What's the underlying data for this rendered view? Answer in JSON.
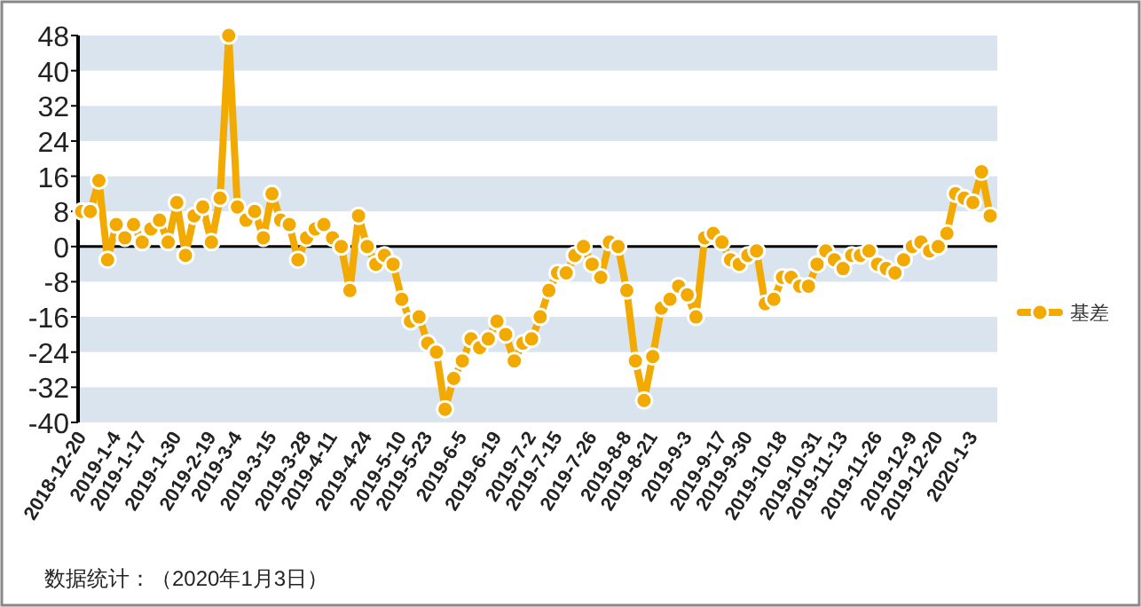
{
  "chart_data": {
    "type": "line",
    "categories": [
      "2018-12-20",
      null,
      null,
      null,
      "2019-1-4",
      null,
      null,
      "2019-1-17",
      null,
      null,
      null,
      "2019-1-30",
      null,
      null,
      null,
      "2019-2-19",
      null,
      null,
      "2019-3-4",
      null,
      null,
      null,
      "2019-3-15",
      null,
      null,
      null,
      "2019-3-28",
      null,
      null,
      "2019-4-11",
      null,
      null,
      null,
      "2019-4-24",
      null,
      null,
      null,
      "2019-5-10",
      null,
      null,
      "2019-5-23",
      null,
      null,
      null,
      "2019-6-5",
      null,
      null,
      null,
      "2019-6-19",
      null,
      null,
      null,
      "2019-7-2",
      null,
      null,
      "2019-7-15",
      null,
      null,
      null,
      "2019-7-26",
      null,
      null,
      null,
      "2019-8-8",
      null,
      null,
      "2019-8-21",
      null,
      null,
      null,
      "2019-9-3",
      null,
      null,
      null,
      "2019-9-17",
      null,
      null,
      "2019-9-30",
      null,
      null,
      null,
      "2019-10-18",
      null,
      null,
      null,
      "2019-10-31",
      null,
      null,
      "2019-11-13",
      null,
      null,
      null,
      "2019-11-26",
      null,
      null,
      null,
      "2019-12-9",
      null,
      null,
      "2019-12-20",
      null,
      null,
      null,
      "2020-1-3",
      null,
      null
    ],
    "series": [
      {
        "name": "基差",
        "color": "#f2a900",
        "values": [
          8,
          8,
          15,
          -3,
          5,
          2,
          5,
          1,
          4,
          6,
          1,
          10,
          -2,
          7,
          9,
          1,
          11,
          48,
          9,
          6,
          8,
          2,
          12,
          6,
          5,
          -3,
          2,
          4,
          5,
          2,
          0,
          -10,
          7,
          0,
          -4,
          -2,
          -4,
          -12,
          -17,
          -16,
          -22,
          -24,
          -37,
          -30,
          -26,
          -21,
          -23,
          -21,
          -17,
          -20,
          -26,
          -22,
          -21,
          -16,
          -10,
          -6,
          -6,
          -2,
          0,
          -4,
          -7,
          1,
          0,
          -10,
          -26,
          -35,
          -25,
          -14,
          -12,
          -9,
          -11,
          -16,
          2,
          3,
          1,
          -3,
          -4,
          -2,
          -1,
          -13,
          -12,
          -7,
          -7,
          -9,
          -9,
          -4,
          -1,
          -3,
          -5,
          -2,
          -2,
          -1,
          -4,
          -5,
          -6,
          -3,
          0,
          1,
          -1,
          0,
          3,
          12,
          11,
          10,
          17,
          7
        ]
      }
    ],
    "ylim": [
      -40,
      48
    ],
    "yticks": [
      -40,
      -32,
      -24,
      -16,
      -8,
      0,
      8,
      16,
      24,
      32,
      40,
      48
    ],
    "marker": "circle",
    "legend": "right",
    "bands": [
      {
        "axis": "y",
        "from": -40,
        "to": -32,
        "color": "#d9e4ef"
      },
      {
        "axis": "y",
        "from": -24,
        "to": -16,
        "color": "#d9e4ef"
      },
      {
        "axis": "y",
        "from": -8,
        "to": 0,
        "color": "#d9e4ef"
      },
      {
        "axis": "y",
        "from": 8,
        "to": 16,
        "color": "#d9e4ef"
      },
      {
        "axis": "y",
        "from": 24,
        "to": 32,
        "color": "#d9e4ef"
      },
      {
        "axis": "y",
        "from": 40,
        "to": 48,
        "color": "#d9e4ef"
      }
    ],
    "ref_lines": [
      {
        "axis": "y",
        "value": 0,
        "color": "#000000"
      }
    ],
    "annotations": [
      "数据统计：（2020年1月3日）"
    ]
  }
}
